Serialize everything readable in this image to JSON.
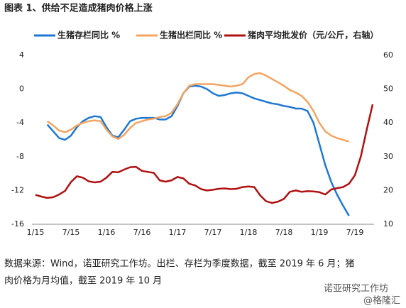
{
  "chart_data": {
    "type": "line",
    "title": "图表 1、供给不足造成猪肉价格上涨",
    "categories": [
      "1/15",
      null,
      null,
      null,
      null,
      null,
      "7/15",
      null,
      null,
      null,
      null,
      null,
      "1/16",
      null,
      null,
      null,
      null,
      null,
      "7/16",
      null,
      null,
      null,
      null,
      null,
      "1/17",
      null,
      null,
      null,
      null,
      null,
      "7/17",
      null,
      null,
      null,
      null,
      null,
      "1/18",
      null,
      null,
      null,
      null,
      null,
      "7/18",
      null,
      null,
      null,
      null,
      null,
      "1/19",
      null,
      null,
      null,
      null,
      null,
      "7/19",
      null,
      null,
      null
    ],
    "series": [
      {
        "name": "生猪存栏同比 %",
        "color": "#1e78d2",
        "values": [
          null,
          null,
          -4.2,
          -5.0,
          -5.8,
          -6.0,
          -5.5,
          -4.5,
          -3.8,
          -3.4,
          -3.2,
          -3.3,
          -4.5,
          -5.5,
          -5.7,
          -4.8,
          -3.8,
          -3.5,
          -3.4,
          -3.4,
          -3.4,
          -3.6,
          -3.6,
          -3.2,
          -2.0,
          -0.5,
          0.3,
          0.4,
          0.3,
          0.0,
          -0.5,
          -0.8,
          -0.7,
          -0.5,
          -0.4,
          -0.5,
          -0.8,
          -1.1,
          -1.3,
          -1.5,
          -1.7,
          -1.8,
          -2.0,
          -2.1,
          -2.3,
          -2.3,
          -2.6,
          -4.0,
          -6.5,
          -9.0,
          -11.0,
          -12.5,
          -13.8,
          -15.0,
          null,
          null,
          null,
          null
        ]
      },
      {
        "name": "生猪出栏同比 %",
        "color": "#f4a460",
        "values": [
          null,
          null,
          -3.8,
          -4.3,
          -4.9,
          -5.1,
          -4.8,
          -4.3,
          -4.0,
          -3.8,
          -3.7,
          -3.8,
          -4.8,
          -5.6,
          -5.9,
          -5.4,
          -4.6,
          -4.0,
          -3.8,
          -3.6,
          -3.5,
          -3.3,
          -3.2,
          -2.8,
          -1.8,
          -0.5,
          0.4,
          0.6,
          0.6,
          0.6,
          0.6,
          0.5,
          0.4,
          0.3,
          0.4,
          0.6,
          1.4,
          1.8,
          1.9,
          1.6,
          1.2,
          0.8,
          0.4,
          -0.1,
          -0.4,
          -0.8,
          -1.5,
          -2.6,
          -4.0,
          -5.0,
          -5.5,
          -5.8,
          -6.0,
          -6.2,
          null,
          null,
          null,
          null
        ]
      },
      {
        "name": "猪肉平均批发价（元/公斤，右轴）",
        "color": "#b01010",
        "axis": "y2",
        "values": [
          18.7,
          18.2,
          17.8,
          18.0,
          18.8,
          19.9,
          22.5,
          24.2,
          23.8,
          22.7,
          22.4,
          22.6,
          23.8,
          25.5,
          25.4,
          26.2,
          26.9,
          27.0,
          25.8,
          25.5,
          25.2,
          23.0,
          22.6,
          23.0,
          24.0,
          23.6,
          22.0,
          21.5,
          20.4,
          20.0,
          20.2,
          20.5,
          20.6,
          20.4,
          20.5,
          21.0,
          21.2,
          21.0,
          18.5,
          16.8,
          16.3,
          16.7,
          17.5,
          19.6,
          20.0,
          19.6,
          19.8,
          19.7,
          19.5,
          18.8,
          20.3,
          20.7,
          21.0,
          22.0,
          24.5,
          30.0,
          38.0,
          45.5
        ]
      }
    ],
    "ylim": [
      -16,
      4
    ],
    "yticks": [
      -16,
      -12,
      -8,
      -4,
      0,
      4
    ],
    "y2lim": [
      10,
      60
    ],
    "y2ticks": [
      10,
      20,
      30,
      40,
      50,
      60
    ],
    "grid": false,
    "source": [
      "数据来源：Wind，诺亚研究工作坊。出栏、存栏为季度数据，截至 2019 年 6 月；猪",
      "肉价格为月均值，截至 2019 年 10 月"
    ],
    "watermark": [
      "诺亚研究工作坊",
      "@格隆汇"
    ]
  }
}
